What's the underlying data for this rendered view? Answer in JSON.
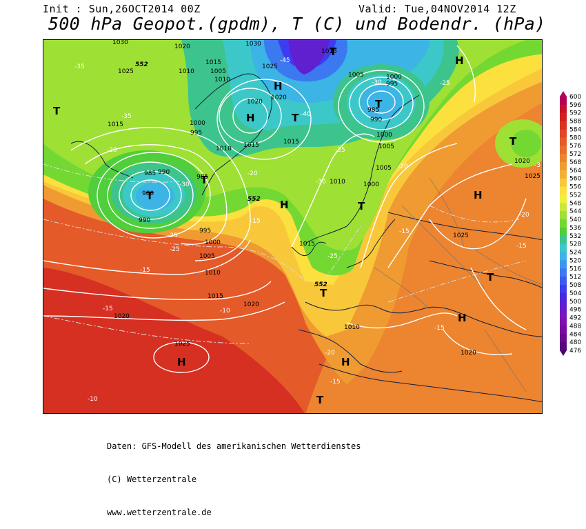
{
  "header": {
    "init": "Init : Sun,26OCT2014 00Z",
    "valid": "Valid: Tue,04NOV2014 12Z",
    "title": "500 hPa Geopot.(gpdm), T (C) und Bodendr. (hPa)"
  },
  "legend": {
    "levels": [
      "600",
      "596",
      "592",
      "588",
      "584",
      "580",
      "576",
      "572",
      "568",
      "564",
      "560",
      "556",
      "552",
      "548",
      "544",
      "540",
      "536",
      "532",
      "528",
      "524",
      "520",
      "516",
      "512",
      "508",
      "504",
      "500",
      "496",
      "492",
      "488",
      "484",
      "480",
      "476"
    ],
    "colors": [
      "#b4005a",
      "#c8102a",
      "#d21e1e",
      "#dc3222",
      "#e04626",
      "#e45a28",
      "#e86e2c",
      "#ec8430",
      "#f09a32",
      "#f4b036",
      "#f8c83a",
      "#fce03e",
      "#f0f03c",
      "#c8e83a",
      "#9ee034",
      "#74d832",
      "#50ce3c",
      "#3cc48c",
      "#3cc8c8",
      "#3cb4e6",
      "#3c96f0",
      "#3c78f0",
      "#3c5af0",
      "#3c3cf0",
      "#4a28e0",
      "#6020d0",
      "#7418c0",
      "#8010b0",
      "#7a0aa0",
      "#6a0890",
      "#580680",
      "#480470"
    ]
  },
  "map": {
    "isobar_labels": [
      "1030",
      "1025",
      "1020",
      "1015",
      "1010",
      "1005",
      "1000",
      "995",
      "990",
      "985",
      "980",
      "1035"
    ],
    "temp_labels": [
      "-35",
      "-30",
      "-25",
      "-20",
      "-15",
      "-10",
      "-40",
      "-45"
    ],
    "geopot_labels": [
      "552"
    ],
    "high_symbol": "H",
    "low_symbol": "T"
  },
  "footer": {
    "line1": "Daten: GFS-Modell des amerikanischen Wetterdienstes",
    "line2": "(C) Wetterzentrale",
    "line3": "www.wetterzentrale.de"
  }
}
